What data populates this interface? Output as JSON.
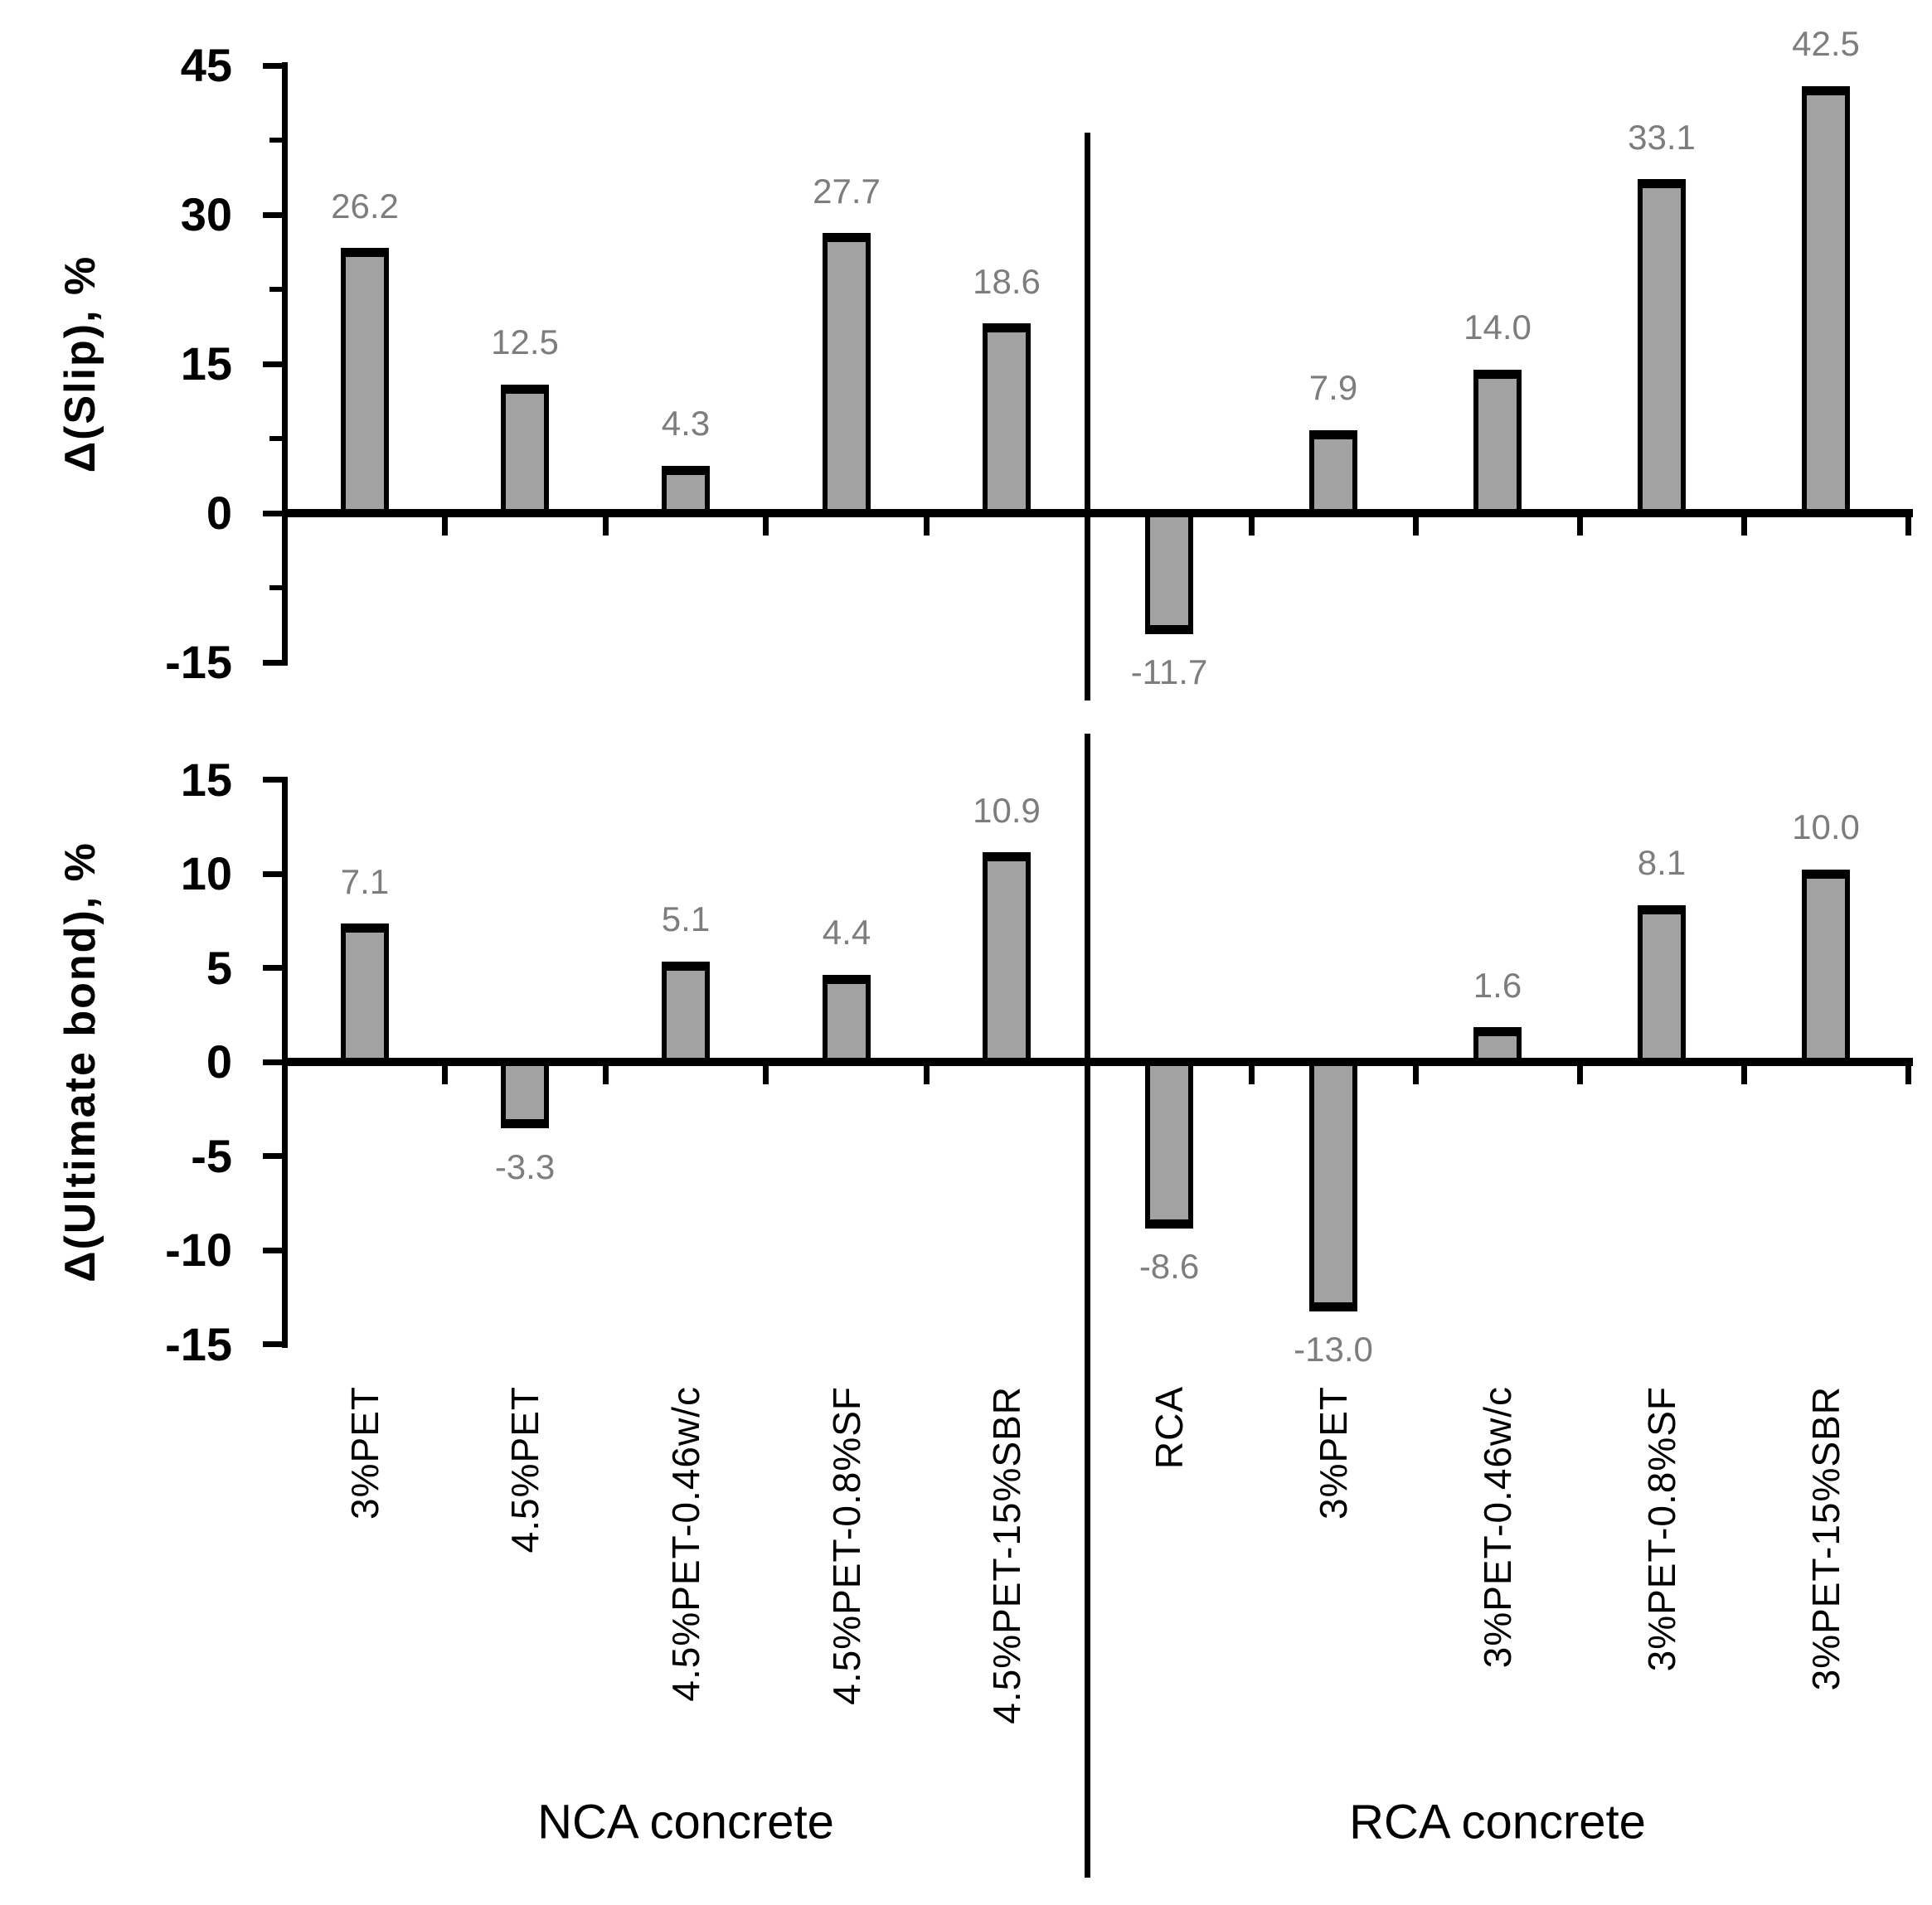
{
  "figure": {
    "background": "#ffffff"
  },
  "colors": {
    "bar_fill": "#a2a2a2",
    "bar_border": "#000000",
    "axis_line": "#000000",
    "tick_label": "#000000",
    "data_label": "#7d7d7d"
  },
  "x_groups": [
    {
      "label": "NCA concrete"
    },
    {
      "label": "RCA concrete"
    }
  ],
  "chart_data": [
    {
      "type": "bar",
      "panel": "top",
      "ylabel": "Δ(Slip), %",
      "ylim": [
        -15,
        45
      ],
      "ymajor_step": 15,
      "yminor_step": 7.5,
      "ytick_labels": [
        "45",
        "30",
        "15",
        "0",
        "-15"
      ],
      "grid": false,
      "legend": false,
      "categories": [
        "3%PET",
        "4.5%PET",
        "4.5%PET-0.46w/c",
        "4.5%PET-0.8%SF",
        "4.5%PET-15%SBR",
        "RCA",
        "3%PET",
        "3%PET-0.46w/c",
        "3%PET-0.8%SF",
        "3%PET-15%SBR"
      ],
      "values": [
        26.2,
        12.5,
        4.3,
        27.7,
        18.6,
        -11.7,
        7.9,
        14.0,
        33.1,
        42.5
      ],
      "data_labels": [
        "26.2",
        "12.5",
        "4.3",
        "27.7",
        "18.6",
        "-11.7",
        "7.9",
        "14.0",
        "33.1",
        "42.5"
      ]
    },
    {
      "type": "bar",
      "panel": "bottom",
      "ylabel": "Δ(Ultimate bond), %",
      "ylim": [
        -15,
        15
      ],
      "ymajor_step": 5,
      "yminor_step": null,
      "ytick_labels": [
        "15",
        "10",
        "5",
        "0",
        "-5",
        "-10",
        "-15"
      ],
      "grid": false,
      "legend": false,
      "categories": [
        "3%PET",
        "4.5%PET",
        "4.5%PET-0.46w/c",
        "4.5%PET-0.8%SF",
        "4.5%PET-15%SBR",
        "RCA",
        "3%PET",
        "3%PET-0.46w/c",
        "3%PET-0.8%SF",
        "3%PET-15%SBR"
      ],
      "values": [
        7.1,
        -3.3,
        5.1,
        4.4,
        10.9,
        -8.6,
        -13.0,
        1.6,
        8.1,
        10.0
      ],
      "data_labels": [
        "7.1",
        "-3.3",
        "5.1",
        "4.4",
        "10.9",
        "-8.6",
        "-13.0",
        "1.6",
        "8.1",
        "10.0"
      ]
    }
  ]
}
